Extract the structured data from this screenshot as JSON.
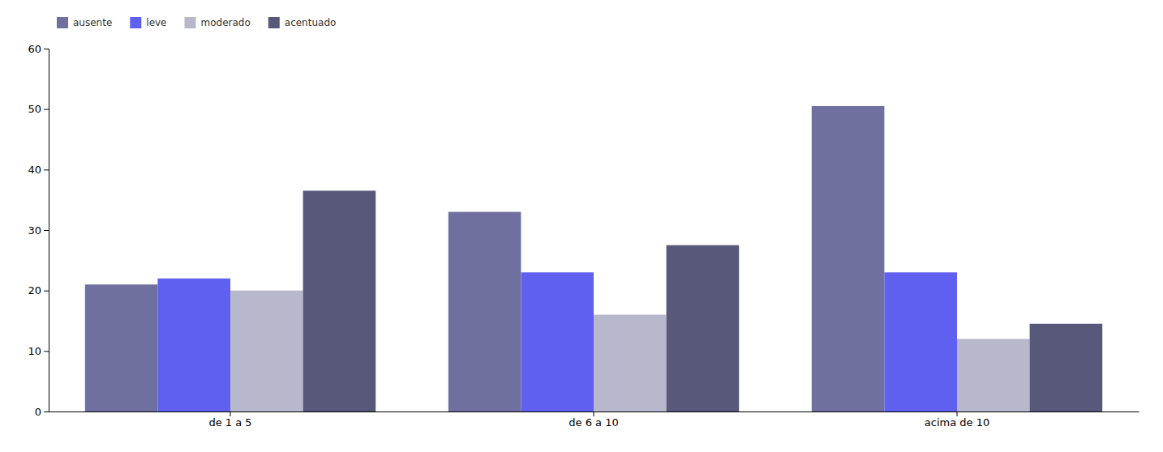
{
  "chart_data": {
    "type": "bar",
    "categories": [
      "de 1 a 5",
      "de 6 a 10",
      "acima de 10"
    ],
    "series": [
      {
        "name": "ausente",
        "color": "#7070a0",
        "values": [
          21,
          33,
          50.5
        ]
      },
      {
        "name": "leve",
        "color": "#6060f0",
        "values": [
          22,
          23,
          23
        ]
      },
      {
        "name": "moderado",
        "color": "#b8b8cc",
        "values": [
          20,
          16,
          12
        ]
      },
      {
        "name": "acentuado",
        "color": "#58587a",
        "values": [
          36.5,
          27.5,
          14.5
        ]
      }
    ],
    "ylim": [
      0,
      60
    ],
    "yticks": [
      0,
      10,
      20,
      30,
      40,
      50,
      60
    ],
    "grid": false,
    "legend": "upper-left"
  }
}
